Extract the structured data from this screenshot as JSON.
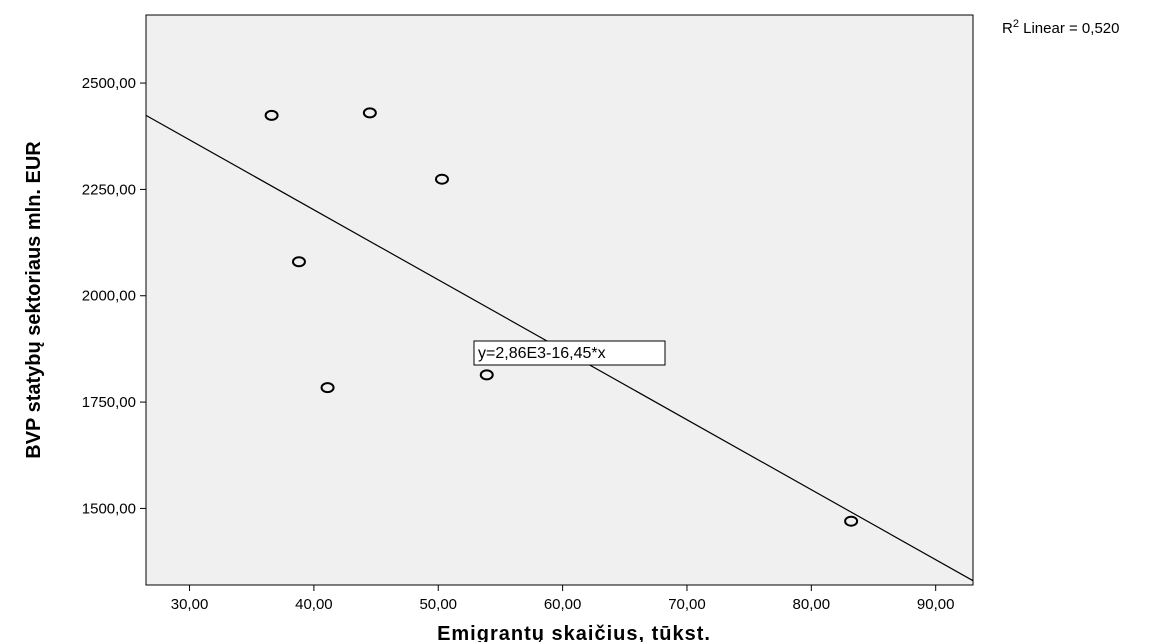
{
  "chart_data": {
    "type": "scatter",
    "xlabel": "Emigrantų skaičius, tūkst.",
    "ylabel": "BVP statybų sektoriaus mln. EUR",
    "xlim": [
      26.5,
      93
    ],
    "ylim": [
      1320,
      2660
    ],
    "x_ticks": [
      "30,00",
      "40,00",
      "50,00",
      "60,00",
      "70,00",
      "80,00",
      "90,00"
    ],
    "x_tick_values": [
      30,
      40,
      50,
      60,
      70,
      80,
      90
    ],
    "y_ticks": [
      "1500,00",
      "1750,00",
      "2000,00",
      "2250,00",
      "2500,00"
    ],
    "y_tick_values": [
      1500,
      1750,
      2000,
      2250,
      2500
    ],
    "grid": false,
    "plot_background": "#f0f0f0",
    "point_color": "#000000",
    "line_color": "#000000",
    "points": [
      {
        "x": 36.6,
        "y": 2424
      },
      {
        "x": 44.5,
        "y": 2430
      },
      {
        "x": 50.3,
        "y": 2274
      },
      {
        "x": 38.8,
        "y": 2080
      },
      {
        "x": 41.1,
        "y": 1784
      },
      {
        "x": 53.9,
        "y": 1814
      },
      {
        "x": 83.2,
        "y": 1470
      }
    ],
    "fit_line": {
      "intercept": 2860,
      "slope": -16.45
    },
    "fit_label": "y=2,86E3-16,45*x",
    "r2_label": {
      "sup": "2",
      "prefix": "R",
      "text": " Linear = 0,520"
    }
  }
}
